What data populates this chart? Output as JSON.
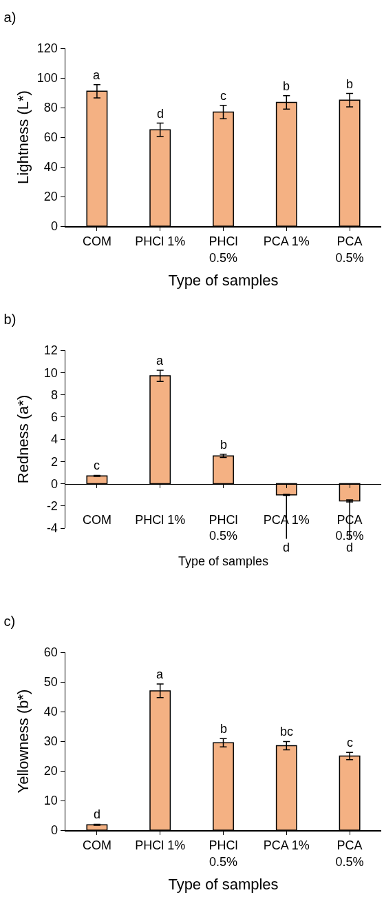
{
  "chart_data": [
    {
      "type": "bar",
      "title": "a)",
      "xlabel": "Type of samples",
      "ylabel": "Lightness (L*)",
      "categories": [
        "COM",
        "PHCl 1%",
        "PHCl 0.5%",
        "PCA 1%",
        "PCA 0.5%"
      ],
      "values": [
        91,
        65,
        77,
        83.5,
        85
      ],
      "errors": [
        4.5,
        4.5,
        4.5,
        4.5,
        4.5
      ],
      "color": "#f4b183",
      "ylim": [
        0,
        120
      ],
      "yticks": [
        0,
        20,
        40,
        60,
        80,
        100,
        120
      ],
      "grid": false,
      "annotations": [
        {
          "text": "a",
          "x": "COM",
          "y": 91
        },
        {
          "text": "d",
          "x": "PHCl 1%",
          "y": 65
        },
        {
          "text": "c",
          "x": "PHCl 0.5%",
          "y": 77
        },
        {
          "text": "b",
          "x": "PCA 1%",
          "y": 83.5
        },
        {
          "text": "b",
          "x": "PCA 0.5%",
          "y": 85
        }
      ]
    },
    {
      "type": "bar",
      "title": "b)",
      "xlabel": "Type of samples",
      "ylabel": "Redness (a*)",
      "categories": [
        "COM",
        "PHCl 1%",
        "PHCl 0.5%",
        "PCA 1%",
        "PCA 0.5%"
      ],
      "values": [
        0.7,
        9.7,
        2.5,
        -1,
        -1.55
      ],
      "errors": [
        0.05,
        0.5,
        0.15,
        0.05,
        0.1
      ],
      "color": "#f4b183",
      "ylim": [
        -4,
        12
      ],
      "yticks": [
        -4,
        -2,
        0,
        2,
        4,
        6,
        8,
        10,
        12
      ],
      "grid": false,
      "annotations": [
        {
          "text": "c",
          "x": "COM",
          "y": 0.7
        },
        {
          "text": "a",
          "x": "PHCl 1%",
          "y": 9.7
        },
        {
          "text": "b",
          "x": "PHCl 0.5%",
          "y": 2.5
        },
        {
          "text": "d",
          "x": "PCA 1%",
          "y": -1
        },
        {
          "text": "d",
          "x": "PCA 0.5%",
          "y": -1.6
        }
      ]
    },
    {
      "type": "bar",
      "title": "c)",
      "xlabel": "Type of samples",
      "ylabel": "Yellowness (b*)",
      "categories": [
        "COM",
        "PHCl 1%",
        "PHCl 0.5%",
        "PCA 1%",
        "PCA 0.5%"
      ],
      "values": [
        1.8,
        47,
        29.5,
        28.5,
        25
      ],
      "errors": [
        0.2,
        2.3,
        1.4,
        1.4,
        1.2
      ],
      "color": "#f4b183",
      "ylim": [
        0,
        60
      ],
      "yticks": [
        0,
        10,
        20,
        30,
        40,
        50,
        60
      ],
      "grid": false,
      "annotations": [
        {
          "text": "d",
          "x": "COM",
          "y": 1.8
        },
        {
          "text": "a",
          "x": "PHCl 1%",
          "y": 47
        },
        {
          "text": "b",
          "x": "PHCl 0.5%",
          "y": 29.5
        },
        {
          "text": "bc",
          "x": "PCA 1%",
          "y": 28.5
        },
        {
          "text": "c",
          "x": "PCA 0.5%",
          "y": 25
        }
      ]
    }
  ]
}
